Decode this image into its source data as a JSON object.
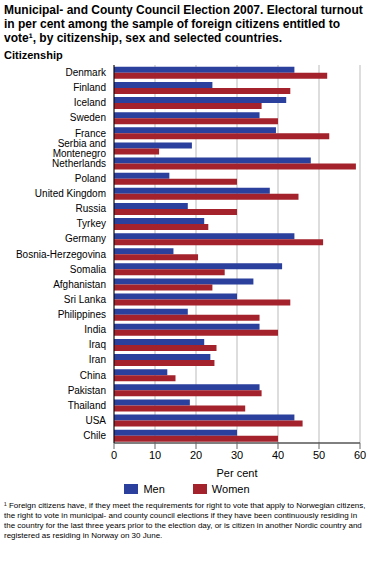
{
  "chart_data": {
    "type": "bar",
    "orientation": "horizontal",
    "title": "Municipal- and County Council Election 2007. Electoral turnout in per cent among the sample of foreign citizens entitled to vote¹, by citizenship, sex and selected countries.",
    "y_label": "Citizenship",
    "x_label": "Per cent",
    "annotations": [
      "¹ Foreign citizens have, if they meet the requirements for right to vote that apply to Norwegian citizens, the right to vote in municipal- and county council elections if they have been continuously residing in the country for the last three years prior to the election day, or is citizen in another Nordic country and registered as residing in Norway on 30 June."
    ],
    "categories": [
      "Denmark",
      "Finland",
      "Iceland",
      "Sweden",
      "France",
      "Serbia and Montenegro",
      "Netherlands",
      "Poland",
      "United Kingdom",
      "Russia",
      "Tyrkey",
      "Germany",
      "Bosnia-Herzegovina",
      "Somalia",
      "Afghanistan",
      "Sri Lanka",
      "Philippines",
      "India",
      "Iraq",
      "Iran",
      "China",
      "Pakistan",
      "Thailand",
      "USA",
      "Chile"
    ],
    "series": [
      {
        "name": "Men",
        "color": "#2b3f9c",
        "values": [
          44,
          24,
          42,
          35.5,
          39.5,
          19,
          48,
          13.5,
          38,
          18,
          22,
          44,
          14.5,
          41,
          34,
          30,
          18,
          35.5,
          22,
          23.5,
          13,
          35.5,
          18.5,
          44,
          30
        ]
      },
      {
        "name": "Women",
        "color": "#a3222b",
        "values": [
          52,
          43,
          36,
          40,
          52.5,
          11,
          59,
          30,
          45,
          30,
          23,
          51,
          20.5,
          27,
          24,
          43,
          35.5,
          40,
          25,
          24.5,
          15,
          36,
          32,
          46,
          40
        ]
      }
    ],
    "xlim": [
      0,
      60
    ],
    "xticks": [
      0,
      10,
      20,
      30,
      40,
      50,
      60
    ],
    "grid": true,
    "legend": "bottom"
  }
}
